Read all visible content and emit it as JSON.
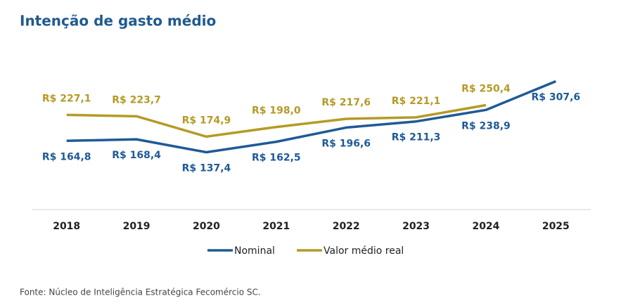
{
  "chart_data": {
    "type": "line",
    "title": "Intenção de gasto médio",
    "categories": [
      "2018",
      "2019",
      "2020",
      "2021",
      "2022",
      "2023",
      "2024",
      "2025"
    ],
    "series": [
      {
        "name": "Nominal",
        "color": "#1f5a96",
        "values": [
          164.8,
          168.4,
          137.4,
          162.5,
          196.6,
          211.3,
          238.9,
          307.6
        ],
        "value_labels": [
          "R$ 164,8",
          "R$ 168,4",
          "R$ 137,4",
          "R$ 162,5",
          "R$ 196,6",
          "R$ 211,3",
          "R$ 238,9",
          "R$ 307,6"
        ]
      },
      {
        "name": "Valor médio real",
        "color": "#b59a26",
        "values": [
          227.1,
          223.7,
          174.9,
          198.0,
          217.6,
          221.1,
          250.4,
          null
        ],
        "value_labels": [
          "R$ 227,1",
          "R$ 223,7",
          "R$ 174,9",
          "R$ 198,0",
          "R$ 217,6",
          "R$ 221,1",
          "R$ 250,4",
          null
        ]
      }
    ],
    "source": "Fonte: Núcleo de Inteligência Estratégica Fecomércio SC."
  }
}
